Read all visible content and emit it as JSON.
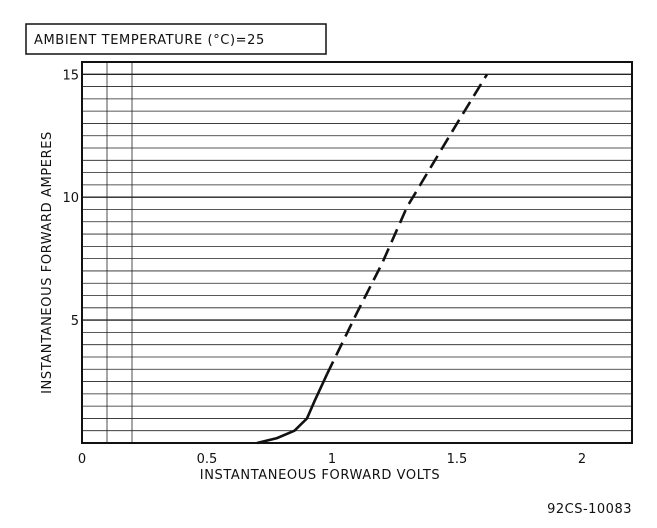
{
  "chart_data": {
    "type": "line",
    "title": "",
    "annotation": "AMBIENT TEMPERATURE (°C)=25",
    "xlabel": "INSTANTANEOUS FORWARD VOLTS",
    "ylabel": "INSTANTANEOUS FORWARD AMPERES",
    "xlim": [
      0,
      2.2
    ],
    "ylim": [
      0,
      15.5
    ],
    "x_ticks": [
      {
        "value": 0,
        "label": "0"
      },
      {
        "value": 0.5,
        "label": "0.5"
      },
      {
        "value": 1,
        "label": "1"
      },
      {
        "value": 1.5,
        "label": "1.5"
      },
      {
        "value": 2,
        "label": "2"
      }
    ],
    "y_ticks": [
      {
        "value": 5,
        "label": "5"
      },
      {
        "value": 10,
        "label": "10"
      },
      {
        "value": 15,
        "label": "15"
      }
    ],
    "grid": true,
    "series": [
      {
        "style": "solid",
        "points": [
          [
            0.7,
            0.0
          ],
          [
            0.78,
            0.2
          ],
          [
            0.85,
            0.5
          ],
          [
            0.9,
            1.0
          ],
          [
            0.93,
            1.7
          ],
          [
            0.98,
            2.8
          ]
        ]
      },
      {
        "style": "dashed",
        "points": [
          [
            0.98,
            2.8
          ],
          [
            1.1,
            5.3
          ],
          [
            1.2,
            7.3
          ],
          [
            1.3,
            9.6
          ],
          [
            1.4,
            11.3
          ],
          [
            1.5,
            13.0
          ],
          [
            1.62,
            15.0
          ]
        ]
      }
    ]
  },
  "figure_id": "92CS-10083"
}
